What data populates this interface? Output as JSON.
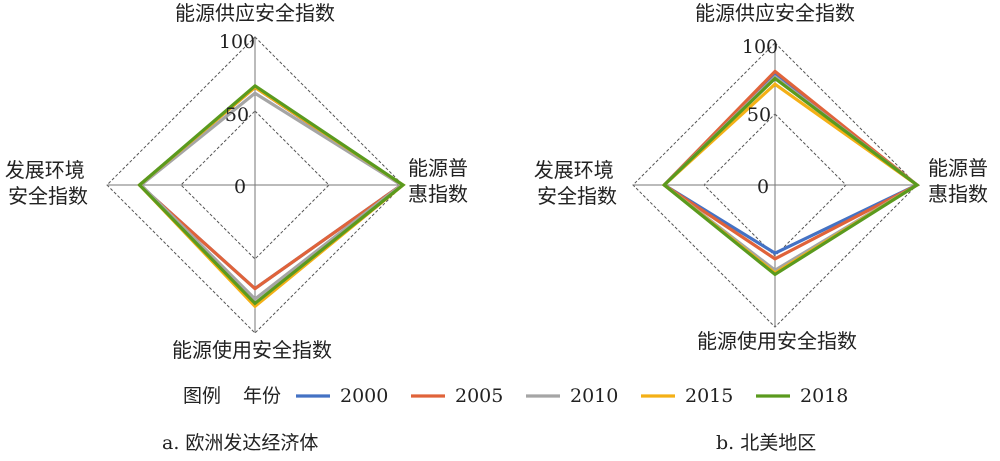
{
  "legend": {
    "title": "图例",
    "subtitle": "年份",
    "entries": [
      {
        "name": "2000",
        "color": "#4472C4"
      },
      {
        "name": "2005",
        "color": "#E0633A"
      },
      {
        "name": "2010",
        "color": "#A5A5A5"
      },
      {
        "name": "2015",
        "color": "#F4B016"
      },
      {
        "name": "2018",
        "color": "#5A9A1E"
      }
    ]
  },
  "chart_data": [
    {
      "type": "radar",
      "caption": "a. 欧洲发达经济体",
      "axes": [
        "能源供应安全指数",
        "能源普\n惠指数",
        "能源使用安全指数",
        "发展环境\n安全指数"
      ],
      "rlim": [
        0,
        100
      ],
      "ticks": [
        "0",
        "50",
        "100"
      ],
      "series": [
        {
          "name": "2000",
          "color": "#4472C4",
          "values": [
            66,
            99,
            70,
            78
          ]
        },
        {
          "name": "2005",
          "color": "#E0633A",
          "values": [
            66,
            99,
            70,
            78
          ]
        },
        {
          "name": "2010",
          "color": "#A5A5A5",
          "values": [
            62,
            99,
            77,
            77
          ]
        },
        {
          "name": "2015",
          "color": "#F4B016",
          "values": [
            66,
            100,
            82,
            78
          ]
        },
        {
          "name": "2018",
          "color": "#5A9A1E",
          "values": [
            67,
            100,
            80,
            78
          ]
        }
      ]
    },
    {
      "type": "radar",
      "caption": "b. 北美地区",
      "axes": [
        "能源供应安全指数",
        "能源普\n惠指数",
        "能源使用安全指数",
        "发展环境\n安全指数"
      ],
      "rlim": [
        0,
        100
      ],
      "ticks": [
        "0",
        "50",
        "100"
      ],
      "series": [
        {
          "name": "2000",
          "color": "#4472C4",
          "values": [
            79,
            100,
            48,
            78
          ]
        },
        {
          "name": "2005",
          "color": "#E0633A",
          "values": [
            80,
            100,
            52,
            78
          ]
        },
        {
          "name": "2010",
          "color": "#A5A5A5",
          "values": [
            76,
            100,
            60,
            78
          ]
        },
        {
          "name": "2015",
          "color": "#F4B016",
          "values": [
            71,
            100,
            62,
            78
          ]
        },
        {
          "name": "2018",
          "color": "#5A9A1E",
          "values": [
            75,
            100,
            63,
            78
          ]
        }
      ]
    }
  ]
}
